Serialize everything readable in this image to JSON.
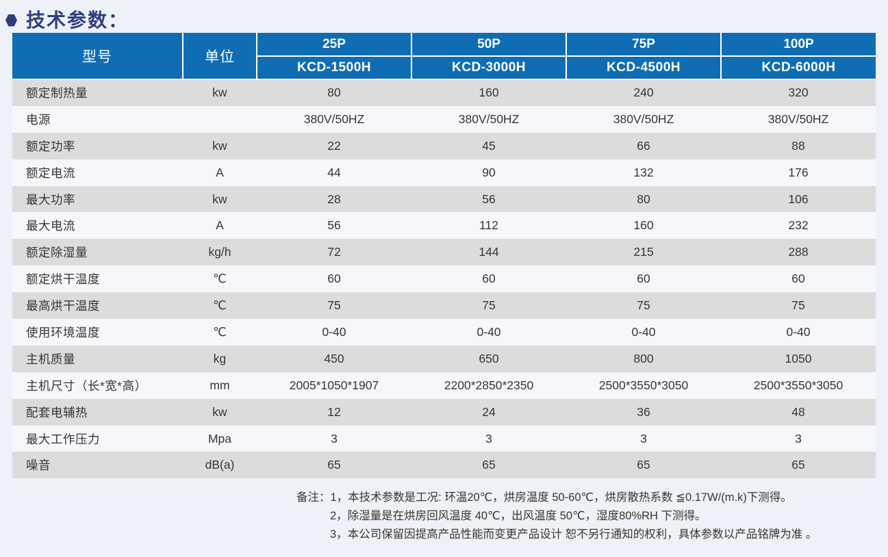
{
  "title": "技术参数：",
  "colors": {
    "header_blue": "#0f6db3",
    "title_navy": "#2e3e7e",
    "row_gray": "#dcdcdc",
    "row_light": "#f5f7fb",
    "page_background": "#eef1f7",
    "text": "#393432"
  },
  "table": {
    "header": {
      "model_label": "型号",
      "unit_label": "单位",
      "columns": [
        {
          "power": "25P",
          "model": "KCD-1500H"
        },
        {
          "power": "50P",
          "model": "KCD-3000H"
        },
        {
          "power": "75P",
          "model": "KCD-4500H"
        },
        {
          "power": "100P",
          "model": "KCD-6000H"
        }
      ]
    },
    "rows": [
      {
        "label": "额定制热量",
        "unit": "kw",
        "values": [
          "80",
          "160",
          "240",
          "320"
        ]
      },
      {
        "label": "电源",
        "unit": "",
        "values": [
          "380V/50HZ",
          "380V/50HZ",
          "380V/50HZ",
          "380V/50HZ"
        ]
      },
      {
        "label": "额定功率",
        "unit": "kw",
        "values": [
          "22",
          "45",
          "66",
          "88"
        ]
      },
      {
        "label": "额定电流",
        "unit": "A",
        "values": [
          "44",
          "90",
          "132",
          "176"
        ]
      },
      {
        "label": "最大功率",
        "unit": "kw",
        "values": [
          "28",
          "56",
          "80",
          "106"
        ]
      },
      {
        "label": "最大电流",
        "unit": "A",
        "values": [
          "56",
          "112",
          "160",
          "232"
        ]
      },
      {
        "label": "额定除湿量",
        "unit": "kg/h",
        "values": [
          "72",
          "144",
          "215",
          "288"
        ]
      },
      {
        "label": "额定烘干温度",
        "unit": "℃",
        "values": [
          "60",
          "60",
          "60",
          "60"
        ]
      },
      {
        "label": "最高烘干温度",
        "unit": "℃",
        "values": [
          "75",
          "75",
          "75",
          "75"
        ]
      },
      {
        "label": "使用环境温度",
        "unit": "℃",
        "values": [
          "0-40",
          "0-40",
          "0-40",
          "0-40"
        ]
      },
      {
        "label": "主机质量",
        "unit": "kg",
        "values": [
          "450",
          "650",
          "800",
          "1050"
        ]
      },
      {
        "label": "主机尺寸（长*宽*高）",
        "unit": "mm",
        "values": [
          "2005*1050*1907",
          "2200*2850*2350",
          "2500*3550*3050",
          "2500*3550*3050"
        ]
      },
      {
        "label": "配套电辅热",
        "unit": "kw",
        "values": [
          "12",
          "24",
          "36",
          "48"
        ]
      },
      {
        "label": "最大工作压力",
        "unit": "Mpa",
        "values": [
          "3",
          "3",
          "3",
          "3"
        ]
      },
      {
        "label": "噪音",
        "unit": "dB(a)",
        "values": [
          "65",
          "65",
          "65",
          "65"
        ]
      }
    ]
  },
  "notes": {
    "prefix": "备注：",
    "lines": [
      "1，本技术参数是工况: 环温20℃，烘房温度 50-60℃，烘房散热系数 ≦0.17W/(m.k)下测得。",
      "2，除湿量是在烘房回风温度 40℃，出风温度 50℃，湿度80%RH 下测得。",
      "3，本公司保留因提高产品性能而变更产品设计 恕不另行通知的权利，具体参数以产品铭牌为准 。"
    ]
  }
}
